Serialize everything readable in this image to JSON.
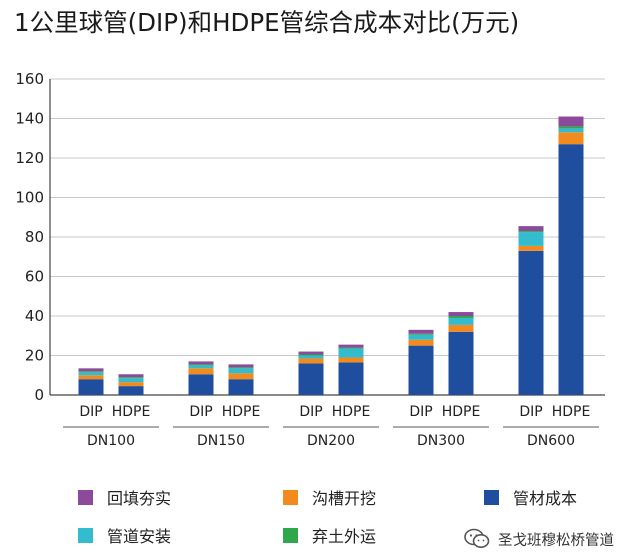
{
  "title": "1公里球管(DIP)和HDPE管综合成本对比(万元)",
  "watermark": "圣戈班穆松桥管道",
  "colors": {
    "管材成本": "#1f4e9e",
    "沟槽开挖": "#f28a1e",
    "管道安装": "#33bccf",
    "弃土外运": "#2ea84a",
    "回填夯实": "#8b4a9c"
  },
  "chart_data": {
    "type": "bar",
    "stacked": true,
    "title": "1公里球管(DIP)和HDPE管综合成本对比(万元)",
    "unit": "万元",
    "groups": [
      "DN100",
      "DN150",
      "DN200",
      "DN300",
      "DN600"
    ],
    "categories": [
      {
        "label": "DIP",
        "group": "DN100"
      },
      {
        "label": "HDPE",
        "group": "DN100"
      },
      {
        "label": "DIP",
        "group": "DN150"
      },
      {
        "label": "HDPE",
        "group": "DN150"
      },
      {
        "label": "DIP",
        "group": "DN200"
      },
      {
        "label": "HDPE",
        "group": "DN200"
      },
      {
        "label": "DIP",
        "group": "DN300"
      },
      {
        "label": "HDPE",
        "group": "DN300"
      },
      {
        "label": "DIP",
        "group": "DN600"
      },
      {
        "label": "HDPE",
        "group": "DN600"
      }
    ],
    "series": [
      {
        "name": "管材成本",
        "values": [
          8,
          4.5,
          10.5,
          8,
          16,
          16.5,
          25,
          32,
          73,
          127
        ]
      },
      {
        "name": "沟槽开挖",
        "values": [
          2,
          2,
          3,
          3,
          2.5,
          2.5,
          3,
          3.5,
          2.5,
          6
        ]
      },
      {
        "name": "管道安装",
        "values": [
          1.5,
          2,
          1.5,
          2.5,
          1.5,
          4.5,
          2.5,
          3.5,
          7,
          2
        ]
      },
      {
        "name": "弃土外运",
        "values": [
          0.5,
          0.5,
          0.5,
          0.5,
          0.5,
          0.5,
          0.5,
          1,
          0.5,
          1
        ]
      },
      {
        "name": "回填夯实",
        "values": [
          1.5,
          1.5,
          1.5,
          1.5,
          1.5,
          1.5,
          2,
          2,
          2.5,
          5
        ]
      }
    ],
    "ylim": [
      0,
      160
    ],
    "yticks": [
      0,
      20,
      40,
      60,
      80,
      100,
      120,
      140,
      160
    ],
    "grid": true,
    "legend": [
      {
        "name": "回填夯实",
        "position": "bottom-left"
      },
      {
        "name": "沟槽开挖",
        "position": "bottom-center"
      },
      {
        "name": "管材成本",
        "position": "bottom-right"
      },
      {
        "name": "管道安装",
        "position": "bottom-left"
      },
      {
        "name": "弃土外运",
        "position": "bottom-center"
      }
    ]
  }
}
